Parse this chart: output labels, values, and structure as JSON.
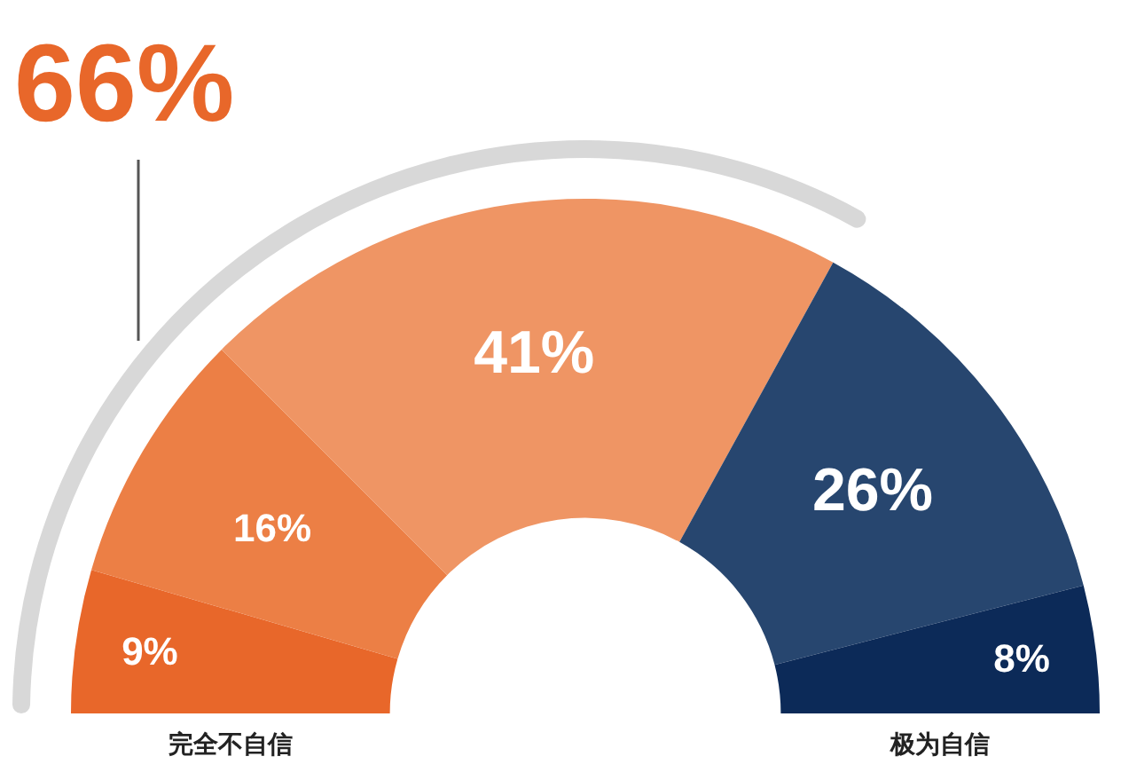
{
  "chart_data": {
    "type": "donut",
    "categories": [
      null,
      null,
      null,
      null,
      null
    ],
    "values": [
      9,
      16,
      41,
      26,
      8
    ],
    "colors": [
      "#e8672a",
      "#ec7f45",
      "#ef9564",
      "#27466f",
      "#0c2a58"
    ],
    "value_labels": [
      "9%",
      "16%",
      "41%",
      "26%",
      "8%"
    ],
    "annotations": [
      "66%",
      "完全不自信",
      "极为自信"
    ]
  }
}
